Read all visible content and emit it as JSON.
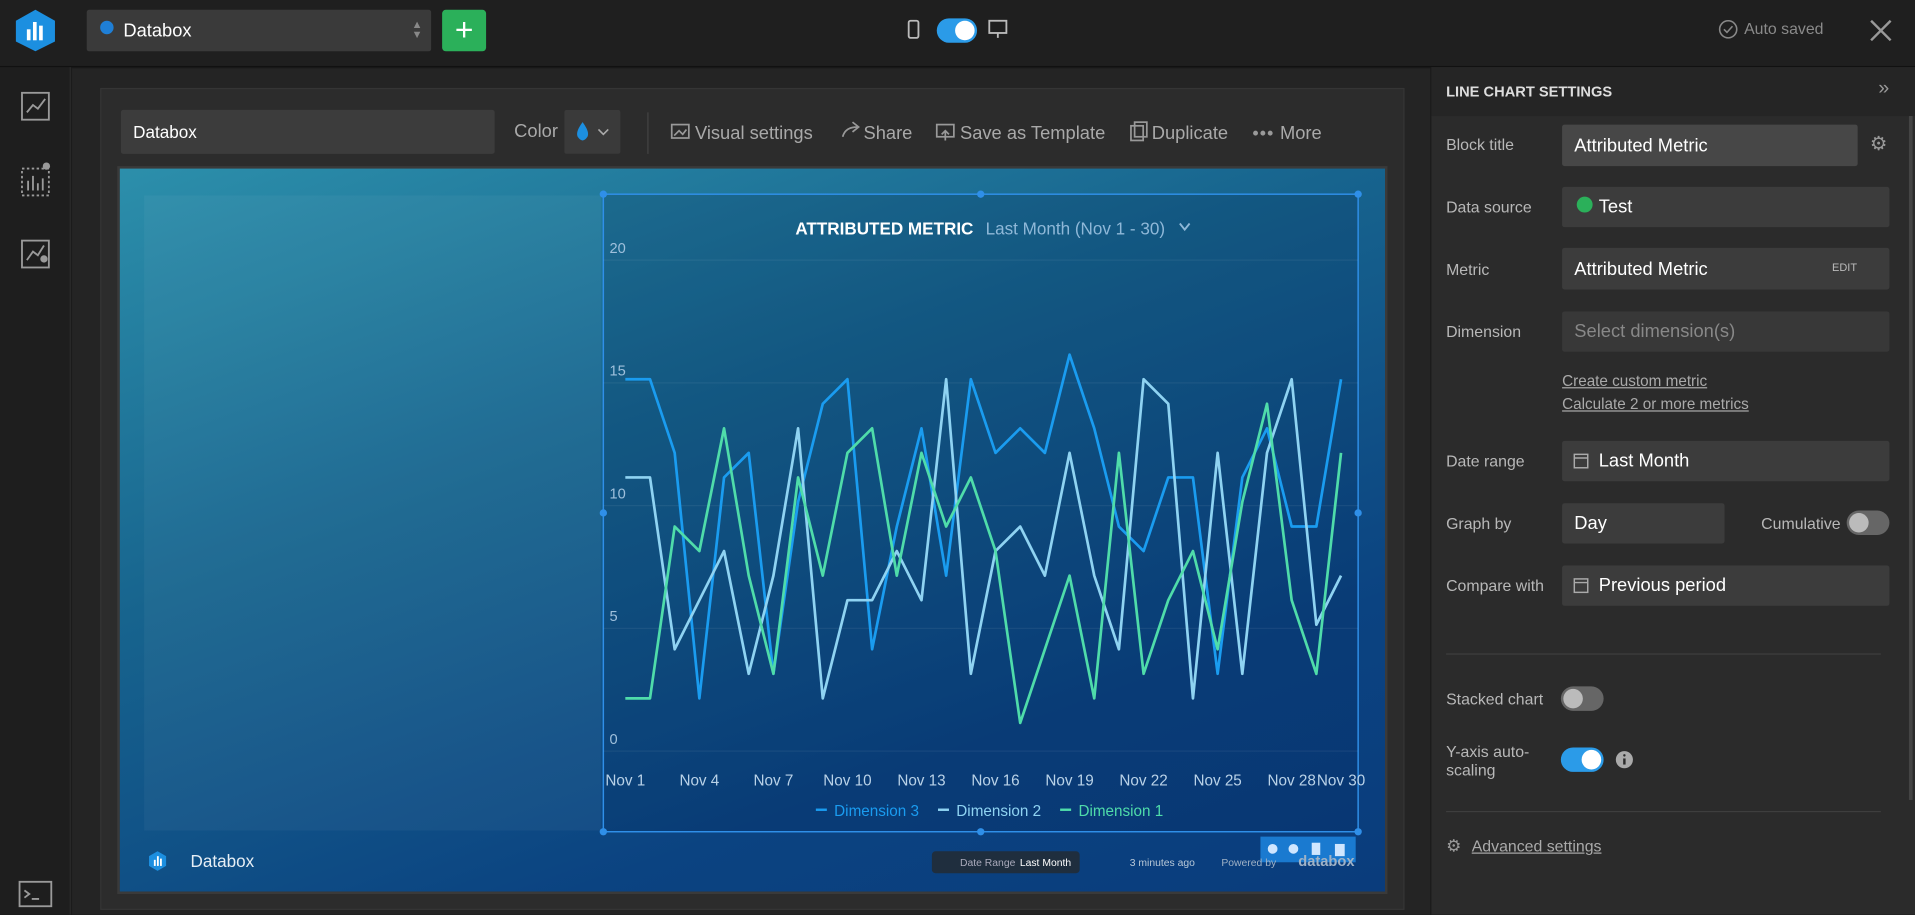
{
  "header": {
    "workspace": "Databox",
    "auto_saved": "Auto saved"
  },
  "toolbar": {
    "name": "Databox",
    "color_label": "Color",
    "actions": [
      "Visual settings",
      "Share",
      "Save as Template",
      "Duplicate",
      "More"
    ]
  },
  "chart_data": {
    "type": "line",
    "title": "ATTRIBUTED METRIC",
    "subtitle": "Last Month (Nov 1 - 30)",
    "categories": [
      "Nov 1",
      null,
      null,
      "Nov 4",
      null,
      null,
      "Nov 7",
      null,
      null,
      "Nov 10",
      null,
      null,
      "Nov 13",
      null,
      null,
      "Nov 16",
      null,
      null,
      "Nov 19",
      null,
      null,
      "Nov 22",
      null,
      null,
      "Nov 25",
      null,
      null,
      "Nov 28",
      null,
      "Nov 30"
    ],
    "series": [
      {
        "name": "Dimension 3",
        "color": "#1a9cf0",
        "values": [
          15,
          15,
          12,
          2,
          11,
          12,
          3,
          10,
          14,
          15,
          4,
          9,
          13,
          7,
          15,
          12,
          13,
          12,
          16,
          13,
          9,
          8,
          11,
          11,
          3,
          11,
          13,
          9,
          9,
          15
        ]
      },
      {
        "name": "Dimension 2",
        "color": "#8fd3f2",
        "values": [
          11,
          11,
          4,
          6,
          8,
          3,
          7,
          13,
          2,
          6,
          6,
          8,
          6,
          15,
          3,
          8,
          9,
          7,
          12,
          7,
          4,
          15,
          14,
          2,
          12,
          3,
          12,
          15,
          5,
          7
        ]
      },
      {
        "name": "Dimension 1",
        "color": "#4fdcaa",
        "values": [
          2,
          2,
          9,
          8,
          13,
          7,
          3,
          11,
          7,
          12,
          13,
          7,
          12,
          9,
          11,
          8,
          1,
          4,
          7,
          2,
          12,
          3,
          6,
          8,
          4,
          10,
          14,
          6,
          3,
          12
        ]
      }
    ],
    "ylim": [
      0,
      20
    ],
    "yticks": [
      0,
      5,
      10,
      15,
      20
    ],
    "grid": true
  },
  "footer": {
    "name": "Databox",
    "date_range_label": "Date Range",
    "date_range_value": "Last Month",
    "updated": "3 minutes ago",
    "powered_by": "Powered by",
    "brand": "databox"
  },
  "settings": {
    "title": "LINE CHART SETTINGS",
    "block_title_label": "Block title",
    "block_title": "Attributed Metric",
    "data_source_label": "Data source",
    "data_source": "Test",
    "metric_label": "Metric",
    "metric": "Attributed Metric",
    "metric_edit": "EDIT",
    "dimension_label": "Dimension",
    "dimension_placeholder": "Select dimension(s)",
    "links": [
      "Create custom metric",
      "Calculate 2 or more metrics"
    ],
    "date_range_label": "Date range",
    "date_range": "Last Month",
    "graph_by_label": "Graph by",
    "graph_by": "Day",
    "cumulative_label": "Cumulative",
    "cumulative": false,
    "compare_label": "Compare with",
    "compare": "Previous period",
    "stacked_label": "Stacked chart",
    "stacked": false,
    "autoscale_label": "Y-axis auto-scaling",
    "autoscale": true,
    "advanced": "Advanced settings"
  }
}
